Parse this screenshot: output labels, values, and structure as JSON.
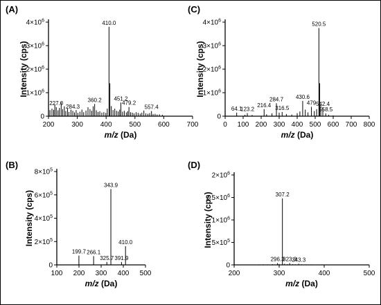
{
  "chart_data": [
    {
      "panel": "(A)",
      "type": "bar",
      "xlabel_italic": "m/z",
      "xlabel_rest": " (Da)",
      "ylabel": "Intensity (cps)",
      "xlim": [
        200,
        700
      ],
      "xticks": [
        200,
        300,
        400,
        500,
        600,
        700
      ],
      "ylim": [
        0,
        4000000
      ],
      "yticks": [
        {
          "v": 0,
          "base": "0"
        },
        {
          "v": 1000000,
          "base": "1×10",
          "exp": "6"
        },
        {
          "v": 2000000,
          "base": "2×10",
          "exp": "6"
        },
        {
          "v": 3000000,
          "base": "3×10",
          "exp": "6"
        },
        {
          "v": 4000000,
          "base": "4×10",
          "exp": "6"
        }
      ],
      "labeled_peaks": [
        {
          "mz": 227.0,
          "label": "227.0",
          "intensity": 380000
        },
        {
          "mz": 284.3,
          "label": "284.3",
          "intensity": 230000
        },
        {
          "mz": 360.2,
          "label": "360.2",
          "intensity": 520000
        },
        {
          "mz": 410.0,
          "label": "410.0",
          "intensity": 3800000
        },
        {
          "mz": 451.2,
          "label": "451.2",
          "intensity": 580000
        },
        {
          "mz": 479.2,
          "label": "479.2",
          "intensity": 390000
        },
        {
          "mz": 557.4,
          "label": "557.4",
          "intensity": 220000
        }
      ],
      "peaks": [
        [
          205,
          260000
        ],
        [
          212,
          320000
        ],
        [
          218,
          270000
        ],
        [
          222,
          510000
        ],
        [
          227,
          380000
        ],
        [
          233,
          250000
        ],
        [
          238,
          350000
        ],
        [
          244,
          600000
        ],
        [
          249,
          300000
        ],
        [
          255,
          420000
        ],
        [
          260,
          220000
        ],
        [
          266,
          330000
        ],
        [
          271,
          180000
        ],
        [
          278,
          280000
        ],
        [
          284.3,
          230000
        ],
        [
          290,
          160000
        ],
        [
          296,
          260000
        ],
        [
          302,
          140000
        ],
        [
          309,
          190000
        ],
        [
          316,
          280000
        ],
        [
          322,
          170000
        ],
        [
          330,
          240000
        ],
        [
          337,
          380000
        ],
        [
          344,
          300000
        ],
        [
          350,
          230000
        ],
        [
          355,
          420000
        ],
        [
          360.2,
          520000
        ],
        [
          366,
          250000
        ],
        [
          372,
          180000
        ],
        [
          378,
          210000
        ],
        [
          385,
          150000
        ],
        [
          392,
          170000
        ],
        [
          399,
          140000
        ],
        [
          404,
          320000
        ],
        [
          410,
          3800000
        ],
        [
          413,
          1400000
        ],
        [
          418,
          430000
        ],
        [
          424,
          260000
        ],
        [
          430,
          320000
        ],
        [
          436,
          230000
        ],
        [
          442,
          200000
        ],
        [
          447,
          280000
        ],
        [
          451.2,
          580000
        ],
        [
          457,
          190000
        ],
        [
          463,
          230000
        ],
        [
          470,
          160000
        ],
        [
          475,
          210000
        ],
        [
          479.2,
          390000
        ],
        [
          485,
          170000
        ],
        [
          491,
          150000
        ],
        [
          497,
          120000
        ],
        [
          504,
          170000
        ],
        [
          511,
          140000
        ],
        [
          518,
          110000
        ],
        [
          524,
          150000
        ],
        [
          531,
          240000
        ],
        [
          538,
          120000
        ],
        [
          545,
          100000
        ],
        [
          551,
          130000
        ],
        [
          557.4,
          220000
        ],
        [
          563,
          90000
        ],
        [
          570,
          100000
        ],
        [
          577,
          70000
        ],
        [
          585,
          80000
        ],
        [
          595,
          60000
        ]
      ]
    },
    {
      "panel": "(B)",
      "type": "bar",
      "xlabel_italic": "m/z",
      "xlabel_rest": " (Da)",
      "ylabel": "Intensity (cps)",
      "xlim": [
        100,
        500
      ],
      "xticks": [
        100,
        200,
        300,
        400,
        500
      ],
      "ylim": [
        0,
        800000
      ],
      "yticks": [
        {
          "v": 0,
          "base": "0"
        },
        {
          "v": 200000,
          "base": "2×10",
          "exp": "5"
        },
        {
          "v": 400000,
          "base": "4×10",
          "exp": "5"
        },
        {
          "v": 600000,
          "base": "6×10",
          "exp": "5"
        },
        {
          "v": 800000,
          "base": "8×10",
          "exp": "5"
        }
      ],
      "labeled_peaks": [
        {
          "mz": 199.7,
          "label": "199.7",
          "intensity": 80000
        },
        {
          "mz": 266.1,
          "label": "266.1",
          "intensity": 75000
        },
        {
          "mz": 325.7,
          "label": "325.7",
          "intensity": 25000
        },
        {
          "mz": 343.9,
          "label": "343.9",
          "intensity": 650000
        },
        {
          "mz": 391.9,
          "label": "391.9",
          "intensity": 25000
        },
        {
          "mz": 410.0,
          "label": "410.0",
          "intensity": 160000
        }
      ],
      "peaks": [
        [
          199.7,
          80000
        ],
        [
          266.1,
          75000
        ],
        [
          325.7,
          25000
        ],
        [
          343.9,
          650000
        ],
        [
          391.9,
          25000
        ],
        [
          410,
          160000
        ]
      ]
    },
    {
      "panel": "(C)",
      "type": "bar",
      "xlabel_italic": "m/z",
      "xlabel_rest": " (Da)",
      "ylabel": "Intensity (cps)",
      "xlim": [
        0,
        800
      ],
      "xticks": [
        0,
        100,
        200,
        300,
        400,
        500,
        600,
        700,
        800
      ],
      "ylim": [
        0,
        4000000
      ],
      "yticks": [
        {
          "v": 0,
          "base": "0"
        },
        {
          "v": 1000000,
          "base": "1×10",
          "exp": "6"
        },
        {
          "v": 2000000,
          "base": "2×10",
          "exp": "6"
        },
        {
          "v": 3000000,
          "base": "3×10",
          "exp": "6"
        },
        {
          "v": 4000000,
          "base": "4×10",
          "exp": "6"
        }
      ],
      "labeled_peaks": [
        {
          "mz": 64.1,
          "label": "64.1",
          "intensity": 150000
        },
        {
          "mz": 123.2,
          "label": "123.2",
          "intensity": 130000
        },
        {
          "mz": 216.4,
          "label": "216.4",
          "intensity": 300000
        },
        {
          "mz": 284.7,
          "label": "284.7",
          "intensity": 550000
        },
        {
          "mz": 316.5,
          "label": "316.5",
          "intensity": 180000
        },
        {
          "mz": 430.6,
          "label": "430.6",
          "intensity": 650000
        },
        {
          "mz": 479,
          "label": "479",
          "intensity": 400000
        },
        {
          "mz": 520.5,
          "label": "520.5",
          "intensity": 3750000
        },
        {
          "mz": 542.4,
          "label": "542.4",
          "intensity": 350000
        },
        {
          "mz": 558.5,
          "label": "558.5",
          "intensity": 120000
        }
      ],
      "peaks": [
        [
          64.1,
          150000
        ],
        [
          110,
          60000
        ],
        [
          123.2,
          130000
        ],
        [
          150,
          50000
        ],
        [
          216.4,
          300000
        ],
        [
          230,
          80000
        ],
        [
          260,
          120000
        ],
        [
          284.7,
          550000
        ],
        [
          300,
          150000
        ],
        [
          316.5,
          180000
        ],
        [
          340,
          90000
        ],
        [
          370,
          70000
        ],
        [
          400,
          130000
        ],
        [
          415,
          200000
        ],
        [
          430.6,
          650000
        ],
        [
          445,
          280000
        ],
        [
          460,
          160000
        ],
        [
          479,
          400000
        ],
        [
          495,
          220000
        ],
        [
          508,
          300000
        ],
        [
          520.5,
          3750000
        ],
        [
          525,
          1400000
        ],
        [
          531,
          500000
        ],
        [
          542.4,
          350000
        ],
        [
          558.5,
          120000
        ],
        [
          575,
          60000
        ],
        [
          600,
          30000
        ]
      ]
    },
    {
      "panel": "(D)",
      "type": "bar",
      "xlabel_italic": "m/z",
      "xlabel_rest": " (Da)",
      "ylabel": "Intensity (cps)",
      "xlim": [
        200,
        500
      ],
      "xticks": [
        200,
        300,
        400,
        500
      ],
      "ylim": [
        0,
        2000000
      ],
      "yticks": [
        {
          "v": 0,
          "base": "0"
        },
        {
          "v": 500000,
          "base": "5×10",
          "exp": "5"
        },
        {
          "v": 1000000,
          "base": "1×10",
          "exp": "6"
        },
        {
          "v": 1500000,
          "base": "1.5×10",
          "exp": "6"
        },
        {
          "v": 2000000,
          "base": "2×10",
          "exp": "6"
        }
      ],
      "labeled_peaks": [
        {
          "mz": 296.3,
          "label": "296.3",
          "intensity": 40000
        },
        {
          "mz": 307.2,
          "label": "307.2",
          "intensity": 1480000
        },
        {
          "mz": 323.3,
          "label": "323.3",
          "intensity": 40000
        },
        {
          "mz": 343.3,
          "label": "343.3",
          "intensity": 25000
        }
      ],
      "peaks": [
        [
          255,
          10000
        ],
        [
          265,
          12000
        ],
        [
          275,
          10000
        ],
        [
          285,
          15000
        ],
        [
          296.3,
          40000
        ],
        [
          300,
          20000
        ],
        [
          307.2,
          1480000
        ],
        [
          312,
          25000
        ],
        [
          318,
          15000
        ],
        [
          323.3,
          40000
        ],
        [
          330,
          15000
        ],
        [
          336,
          12000
        ],
        [
          343.3,
          25000
        ],
        [
          350,
          12000
        ],
        [
          360,
          10000
        ],
        [
          372,
          10000
        ],
        [
          385,
          8000
        ],
        [
          395,
          10000
        ],
        [
          410,
          8000
        ],
        [
          425,
          8000
        ],
        [
          440,
          6000
        ],
        [
          455,
          8000
        ],
        [
          470,
          6000
        ],
        [
          485,
          5000
        ]
      ]
    }
  ]
}
